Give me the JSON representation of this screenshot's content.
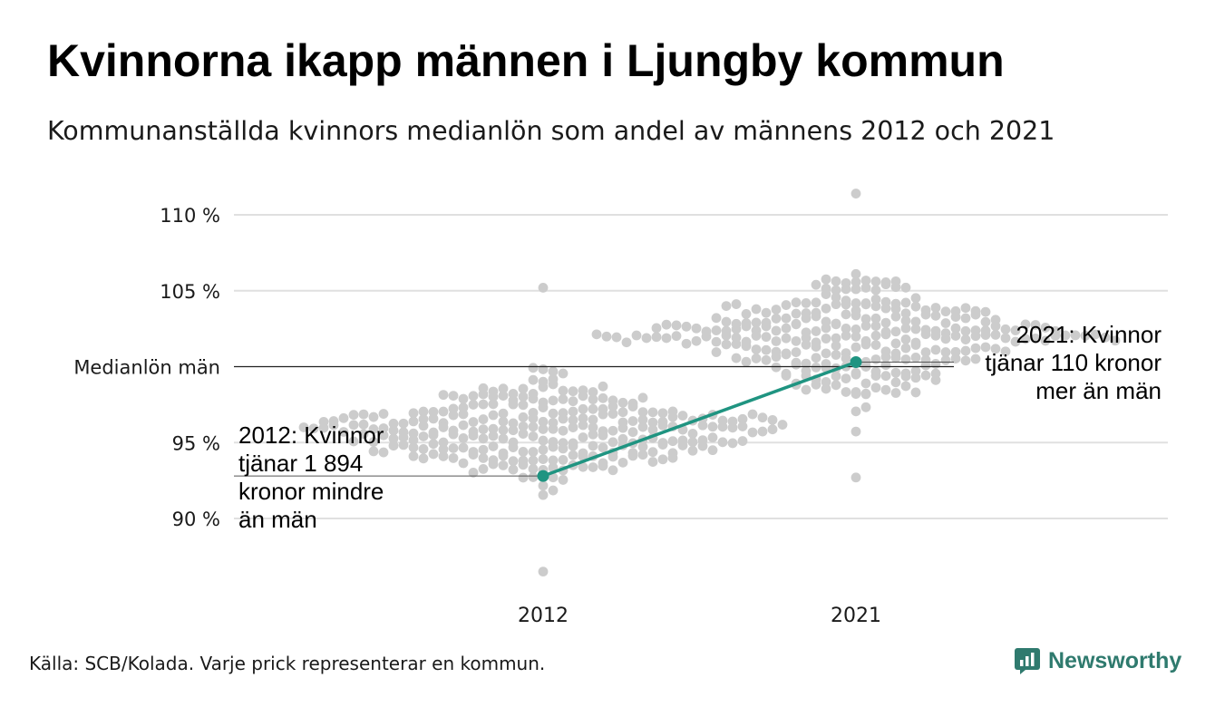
{
  "title": "Kvinnorna ikapp männen i Ljungby kommun",
  "subtitle": "Kommunanställda kvinnors medianlön som andel av männens 2012 och 2021",
  "source": "Källa: SCB/Kolada. Varje prick representerar en kommun.",
  "brand": "Newsworthy",
  "colors": {
    "dots": "#cccccc",
    "highlight": "#1f9481",
    "grid": "#e0e0e0",
    "reference": "#222222"
  },
  "chart_data": {
    "type": "scatter",
    "x_categories": [
      "2012",
      "2021"
    ],
    "y_ticks": [
      {
        "value": 110,
        "label": "110 %"
      },
      {
        "value": 105,
        "label": "105 %"
      },
      {
        "value": 100,
        "label": "Medianlön män"
      },
      {
        "value": 95,
        "label": "95 %"
      },
      {
        "value": 90,
        "label": "90 %"
      }
    ],
    "ylim": [
      86,
      112
    ],
    "reference_line": 100,
    "grid": true,
    "distributions": [
      {
        "category": "2012",
        "min": 86.5,
        "max": 105.2,
        "center": 95.9,
        "spread": 1.6,
        "count": 290,
        "seed": 11
      },
      {
        "category": "2021",
        "min": 92.7,
        "max": 111.4,
        "center": 101.9,
        "spread": 1.9,
        "count": 290,
        "seed": 29
      }
    ],
    "highlight": {
      "name": "Ljungby",
      "points": [
        {
          "x": "2012",
          "y": 92.8
        },
        {
          "x": "2021",
          "y": 100.3
        }
      ]
    },
    "annotations": [
      {
        "x": "2012",
        "y": 92.8,
        "lines": [
          "2012: Kvinnor",
          "tjänar 1 894",
          "kronor mindre",
          "än män"
        ]
      },
      {
        "x": "2021",
        "y": 100.3,
        "lines": [
          "2021: Kvinnor",
          "tjänar 110 kronor",
          "mer än män"
        ]
      }
    ]
  }
}
